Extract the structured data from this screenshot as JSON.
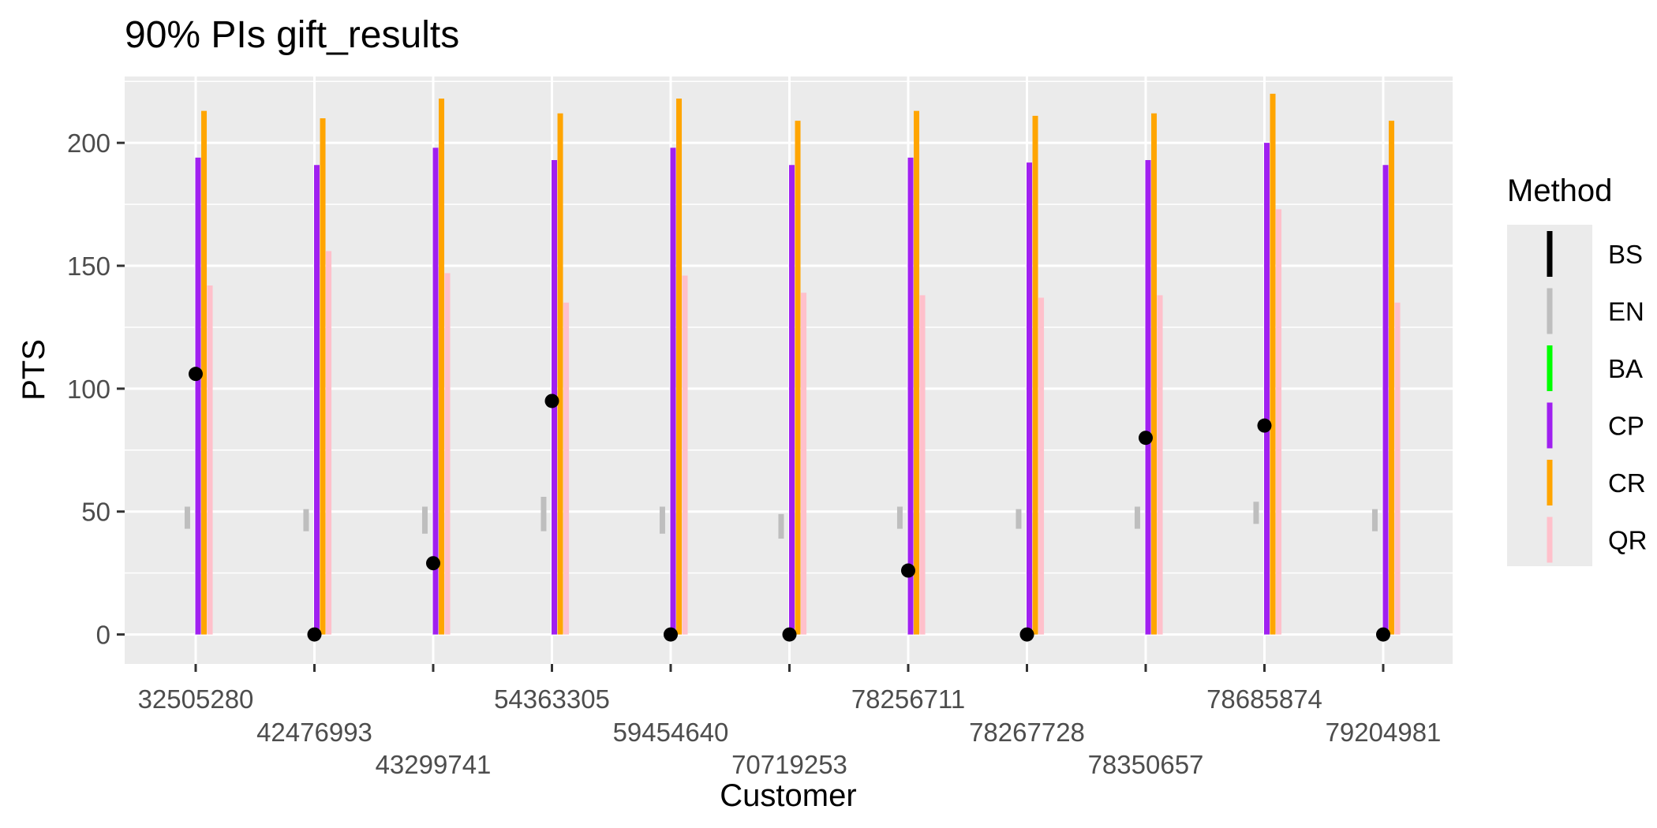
{
  "chart_data": {
    "type": "interval",
    "title": "90% PIs gift_results",
    "xlabel": "Customer",
    "ylabel": "PTS",
    "ylim": [
      -12,
      227
    ],
    "yticks": [
      0,
      50,
      100,
      150,
      200
    ],
    "grid": true,
    "legend": {
      "title": "Method",
      "position": "right",
      "items": [
        {
          "name": "BS",
          "color": "#000000"
        },
        {
          "name": "EN",
          "color": "#bebebe"
        },
        {
          "name": "BA",
          "color": "#00ff00"
        },
        {
          "name": "CP",
          "color": "#a020f0"
        },
        {
          "name": "CR",
          "color": "#ffa500"
        },
        {
          "name": "QR",
          "color": "#ffc0cb"
        }
      ]
    },
    "categories": [
      "32505280",
      "42476993",
      "43299741",
      "54363305",
      "59454640",
      "70719253",
      "78256711",
      "78267728",
      "78350657",
      "78685874",
      "79204981"
    ],
    "observed": [
      106,
      0,
      29,
      95,
      0,
      0,
      26,
      0,
      80,
      85,
      0
    ],
    "series": [
      {
        "name": "BS",
        "color": "#000000",
        "offset": 0,
        "intervals": [
          null,
          null,
          null,
          null,
          null,
          null,
          null,
          null,
          null,
          null,
          null
        ]
      },
      {
        "name": "EN",
        "color": "#bebebe",
        "offset": -0.07,
        "intervals": [
          [
            43,
            52
          ],
          [
            42,
            51
          ],
          [
            41,
            52
          ],
          [
            42,
            56
          ],
          [
            41,
            52
          ],
          [
            39,
            49
          ],
          [
            43,
            52
          ],
          [
            43,
            51
          ],
          [
            43,
            52
          ],
          [
            45,
            54
          ],
          [
            42,
            51
          ]
        ]
      },
      {
        "name": "BA",
        "color": "#00ff00",
        "offset": -0.035,
        "intervals": [
          null,
          null,
          null,
          null,
          null,
          null,
          null,
          null,
          null,
          null,
          null
        ]
      },
      {
        "name": "CP",
        "color": "#a020f0",
        "offset": 0.02,
        "intervals": [
          [
            0,
            194
          ],
          [
            0,
            191
          ],
          [
            0,
            198
          ],
          [
            0,
            193
          ],
          [
            0,
            198
          ],
          [
            0,
            191
          ],
          [
            0,
            194
          ],
          [
            0,
            192
          ],
          [
            0,
            193
          ],
          [
            0,
            200
          ],
          [
            0,
            191
          ]
        ]
      },
      {
        "name": "CR",
        "color": "#ffa500",
        "offset": 0.07,
        "intervals": [
          [
            0,
            213
          ],
          [
            0,
            210
          ],
          [
            0,
            218
          ],
          [
            0,
            212
          ],
          [
            0,
            218
          ],
          [
            0,
            209
          ],
          [
            0,
            213
          ],
          [
            0,
            211
          ],
          [
            0,
            212
          ],
          [
            0,
            220
          ],
          [
            0,
            209
          ]
        ]
      },
      {
        "name": "QR",
        "color": "#ffc0cb",
        "offset": 0.12,
        "intervals": [
          [
            0,
            142
          ],
          [
            0,
            156
          ],
          [
            0,
            147
          ],
          [
            0,
            135
          ],
          [
            0,
            146
          ],
          [
            0,
            139
          ],
          [
            0,
            138
          ],
          [
            0,
            137
          ],
          [
            0,
            138
          ],
          [
            0,
            173
          ],
          [
            0,
            135
          ]
        ]
      }
    ]
  }
}
